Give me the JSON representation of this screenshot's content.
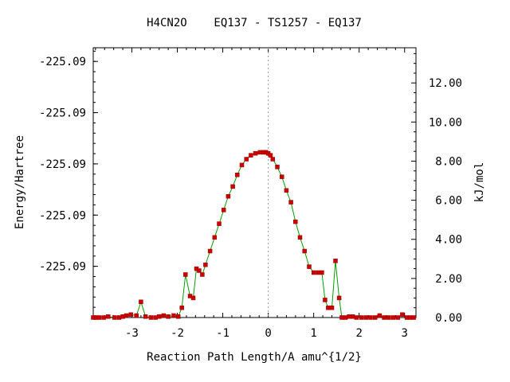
{
  "chart_data": {
    "type": "line",
    "title": "H4CN2O    EQ137 - TS1257 - EQ137",
    "xlabel": "Reaction Path Length/A amu^{1/2}",
    "ylabel": "Energy/Hartree",
    "y2label": "kJ/mol",
    "xlim": [
      -3.85,
      3.25
    ],
    "y2lim": [
      0.0,
      13.8
    ],
    "x_ticks": [
      "-3",
      "-2",
      "-1",
      "0",
      "1",
      "2",
      "3"
    ],
    "x_tick_values": [
      -3,
      -2,
      -1,
      0,
      1,
      2,
      3
    ],
    "y_ticks_left": [
      "-225.09",
      "-225.09",
      "-225.09",
      "-225.09",
      "-225.09"
    ],
    "y_tick_values_left_kjmol": [
      2.62,
      5.24,
      7.86,
      10.48,
      13.1
    ],
    "y_ticks_right": [
      "0.00",
      "2.00",
      "4.00",
      "6.00",
      "8.00",
      "10.00",
      "12.00"
    ],
    "y_tick_values_right": [
      0,
      2,
      4,
      6,
      8,
      10,
      12
    ],
    "reference_line_x": 0,
    "colors": {
      "line": "#00a000",
      "marker": "#cc0000",
      "marker_edge": "#990000",
      "refline": "#999999"
    },
    "series": [
      {
        "x": [
          -3.85,
          -3.78,
          -3.72,
          -3.62,
          -3.52,
          -3.38,
          -3.28,
          -3.2,
          -3.12,
          -3.02,
          -2.9,
          -2.8,
          -2.7,
          -2.58,
          -2.48,
          -2.4,
          -2.3,
          -2.2,
          -2.08,
          -1.98,
          -1.9,
          -1.82,
          -1.72,
          -1.65,
          -1.58,
          -1.52,
          -1.45,
          -1.38,
          -1.28,
          -1.18,
          -1.08,
          -0.98,
          -0.88,
          -0.78,
          -0.68,
          -0.58,
          -0.48,
          -0.38,
          -0.28,
          -0.18,
          -0.1,
          -0.05,
          0.0,
          0.05,
          0.1,
          0.2,
          0.3,
          0.4,
          0.5,
          0.6,
          0.7,
          0.8,
          0.9,
          1.0,
          1.1,
          1.18,
          1.25,
          1.32,
          1.4,
          1.48,
          1.56,
          1.62,
          1.7,
          1.78,
          1.86,
          1.94,
          2.05,
          2.15,
          2.25,
          2.35,
          2.45,
          2.55,
          2.65,
          2.75,
          2.85,
          2.95,
          3.05,
          3.12,
          3.2
        ],
        "y": [
          0.0,
          0.0,
          0.0,
          0.0,
          0.05,
          0.0,
          0.0,
          0.05,
          0.1,
          0.15,
          0.1,
          0.8,
          0.05,
          0.0,
          0.0,
          0.05,
          0.1,
          0.05,
          0.1,
          0.05,
          0.5,
          2.2,
          1.1,
          1.0,
          2.5,
          2.4,
          2.2,
          2.7,
          3.4,
          4.1,
          4.8,
          5.5,
          6.2,
          6.7,
          7.3,
          7.8,
          8.1,
          8.3,
          8.4,
          8.45,
          8.45,
          8.45,
          8.4,
          8.3,
          8.1,
          7.7,
          7.2,
          6.5,
          5.9,
          4.9,
          4.1,
          3.4,
          2.6,
          2.3,
          2.3,
          2.3,
          0.9,
          0.5,
          0.5,
          2.9,
          1.0,
          0.0,
          0.0,
          0.05,
          0.05,
          0.0,
          0.0,
          0.0,
          0.0,
          0.0,
          0.1,
          0.0,
          0.0,
          0.0,
          0.0,
          0.15,
          0.0,
          0.0,
          0.0
        ]
      }
    ]
  }
}
